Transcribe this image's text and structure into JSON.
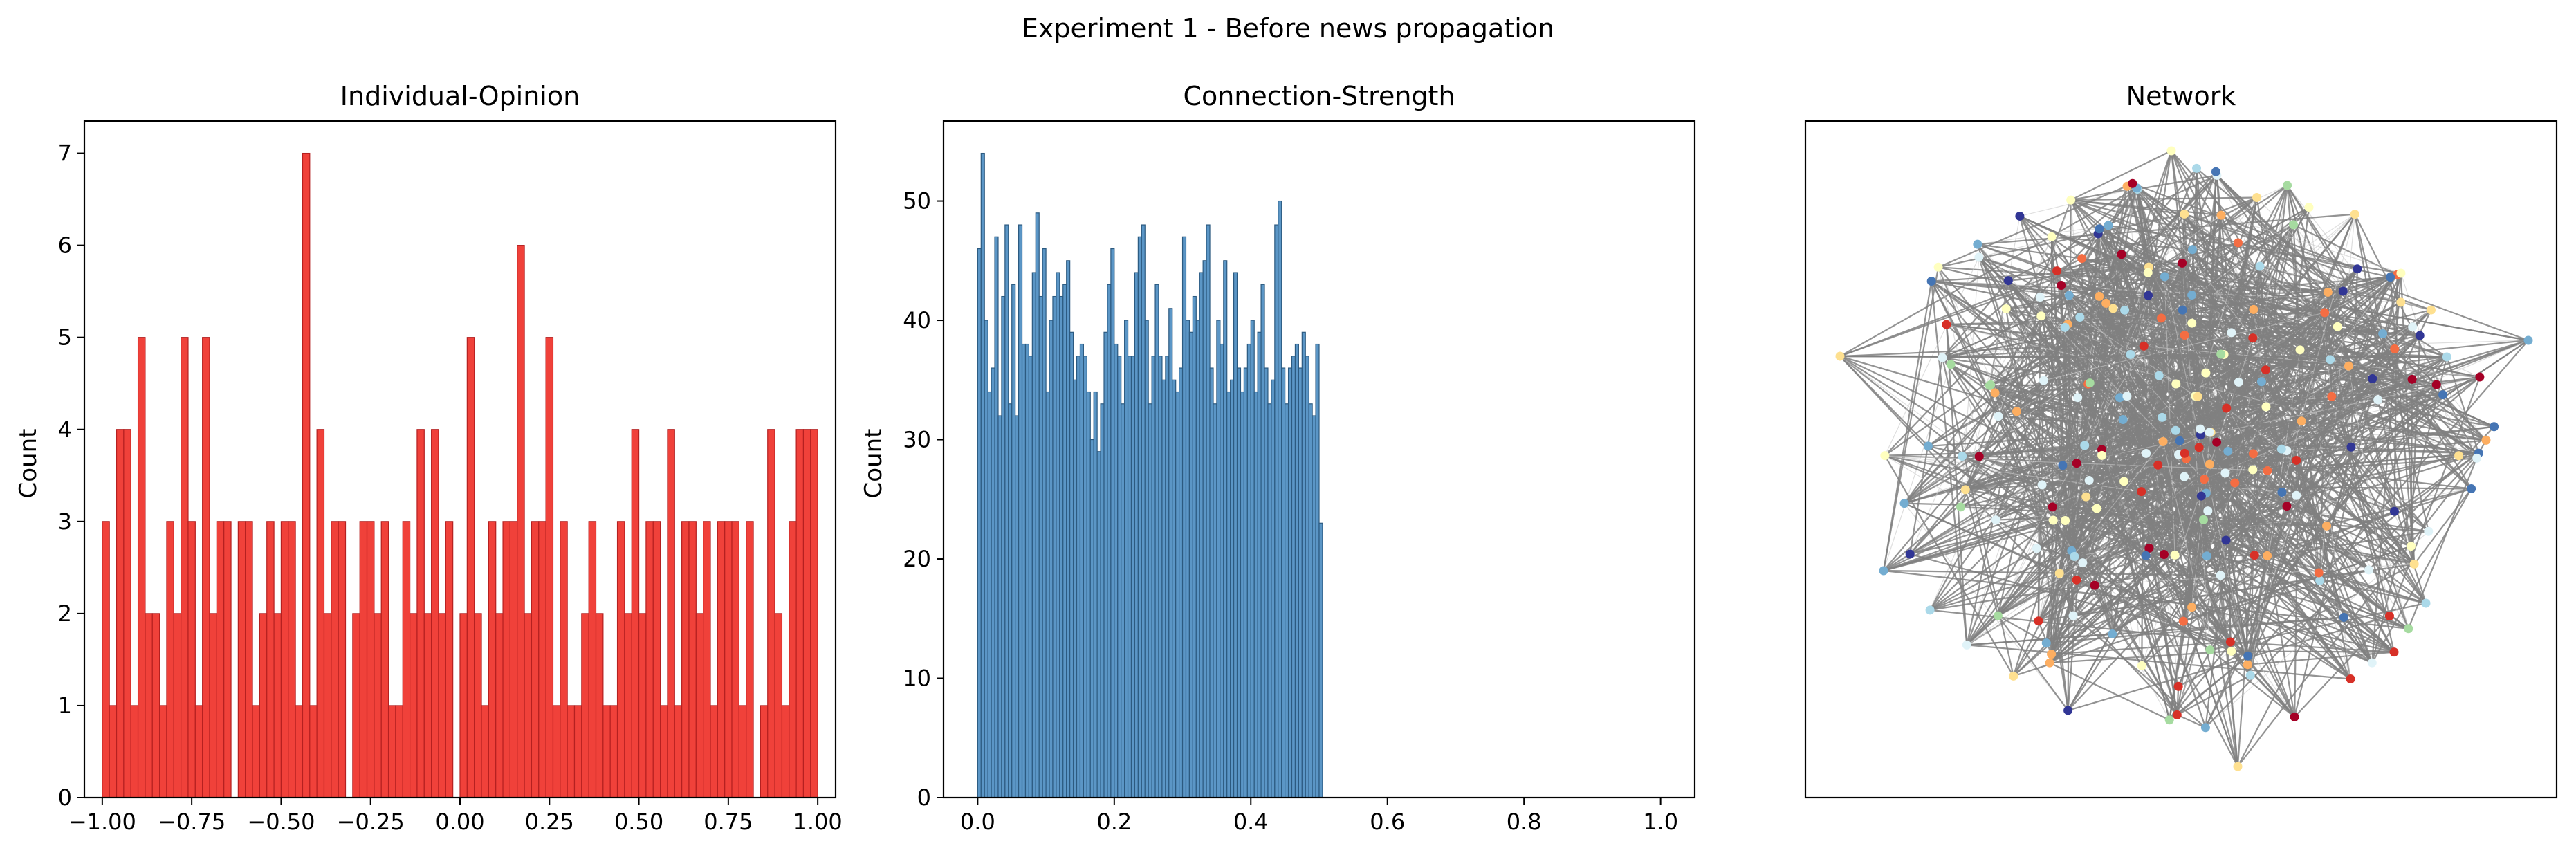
{
  "figure_title": "Experiment 1 - Before news propagation",
  "chart_data": [
    {
      "type": "bar",
      "title": "Individual-Opinion",
      "xlabel": "",
      "ylabel": "Count",
      "xlim": [
        -1.05,
        1.05
      ],
      "ylim": [
        0,
        7.35
      ],
      "xticks": [
        -1.0,
        -0.75,
        -0.5,
        -0.25,
        0.0,
        0.25,
        0.5,
        0.75,
        1.0
      ],
      "xtick_labels": [
        "−1.00",
        "−0.75",
        "−0.50",
        "−0.25",
        "0.00",
        "0.25",
        "0.50",
        "0.75",
        "1.00"
      ],
      "yticks": [
        0,
        1,
        2,
        3,
        4,
        5,
        6,
        7
      ],
      "bins": {
        "start": -1.0,
        "end": 1.0,
        "count": 100
      },
      "values": [
        3,
        1,
        4,
        4,
        1,
        5,
        2,
        2,
        1,
        3,
        2,
        5,
        3,
        1,
        5,
        2,
        3,
        3,
        0,
        3,
        3,
        1,
        2,
        3,
        2,
        3,
        3,
        1,
        7,
        1,
        4,
        2,
        3,
        3,
        0,
        2,
        3,
        3,
        2,
        3,
        1,
        1,
        3,
        2,
        4,
        2,
        4,
        2,
        3,
        0,
        2,
        5,
        2,
        1,
        3,
        2,
        3,
        3,
        6,
        2,
        3,
        3,
        5,
        1,
        3,
        1,
        1,
        2,
        3,
        2,
        1,
        1,
        3,
        2,
        4,
        2,
        3,
        3,
        1,
        4,
        1,
        3,
        3,
        2,
        3,
        1,
        3,
        3,
        3,
        1,
        3,
        0,
        1,
        4,
        2,
        1,
        3,
        4,
        4,
        4
      ],
      "colors": {
        "bar": "#f0413a",
        "edge": "#b52020"
      }
    },
    {
      "type": "bar",
      "title": "Connection-Strength",
      "xlabel": "",
      "ylabel": "Count",
      "xlim": [
        -0.05,
        1.05
      ],
      "ylim": [
        0,
        56.7
      ],
      "xticks": [
        0.0,
        0.2,
        0.4,
        0.6,
        0.8,
        1.0
      ],
      "xtick_labels": [
        "0.0",
        "0.2",
        "0.4",
        "0.6",
        "0.8",
        "1.0"
      ],
      "yticks": [
        0,
        10,
        20,
        30,
        40,
        50
      ],
      "bins": {
        "start": 0.0,
        "end": 0.505,
        "count": 101
      },
      "values": [
        46,
        54,
        40,
        34,
        36,
        47,
        32,
        42,
        48,
        33,
        43,
        32,
        48,
        38,
        38,
        37,
        44,
        49,
        42,
        46,
        34,
        40,
        42,
        44,
        42,
        43,
        45,
        39,
        35,
        37,
        38,
        37,
        34,
        30,
        34,
        29,
        33,
        39,
        43,
        46,
        38,
        37,
        33,
        40,
        37,
        37,
        44,
        47,
        48,
        40,
        33,
        37,
        43,
        37,
        35,
        37,
        41,
        35,
        34,
        36,
        47,
        40,
        39,
        42,
        40,
        44,
        45,
        48,
        36,
        33,
        40,
        38,
        45,
        34,
        35,
        44,
        36,
        34,
        36,
        38,
        40,
        34,
        39,
        43,
        36,
        33,
        35,
        48,
        50,
        36,
        33,
        36,
        37,
        38,
        36,
        39,
        37,
        33,
        32,
        38,
        23
      ],
      "colors": {
        "bar": "#5b96c6",
        "edge": "#2c5a80"
      }
    },
    {
      "type": "network",
      "title": "Network",
      "node_colors": [
        "#a50026",
        "#d73027",
        "#f46d43",
        "#fdae61",
        "#fee090",
        "#ffffbf",
        "#e0f3f8",
        "#abd9e9",
        "#74add1",
        "#4575b4",
        "#313695",
        "#a6dba0"
      ],
      "edge_color": "#808080"
    }
  ]
}
